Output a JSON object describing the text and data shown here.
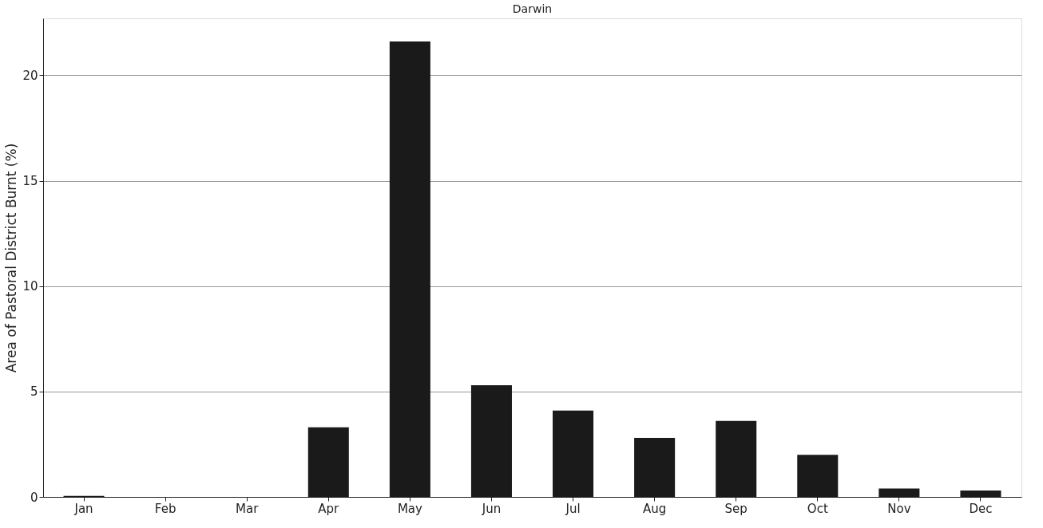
{
  "chart_data": {
    "type": "bar",
    "title": "Darwin",
    "ylabel": "Area of Pastoral District Burnt (%)",
    "categories": [
      "Jan",
      "Feb",
      "Mar",
      "Apr",
      "May",
      "Jun",
      "Jul",
      "Aug",
      "Sep",
      "Oct",
      "Nov",
      "Dec"
    ],
    "values": [
      0.05,
      0,
      0,
      3.3,
      21.6,
      5.3,
      4.1,
      2.8,
      3.6,
      2.0,
      0.4,
      0.3
    ],
    "color": "#1a1a1a",
    "ylim": [
      0,
      22.7
    ],
    "yticks": [
      0,
      5,
      10,
      15,
      20
    ],
    "grid": "y"
  }
}
